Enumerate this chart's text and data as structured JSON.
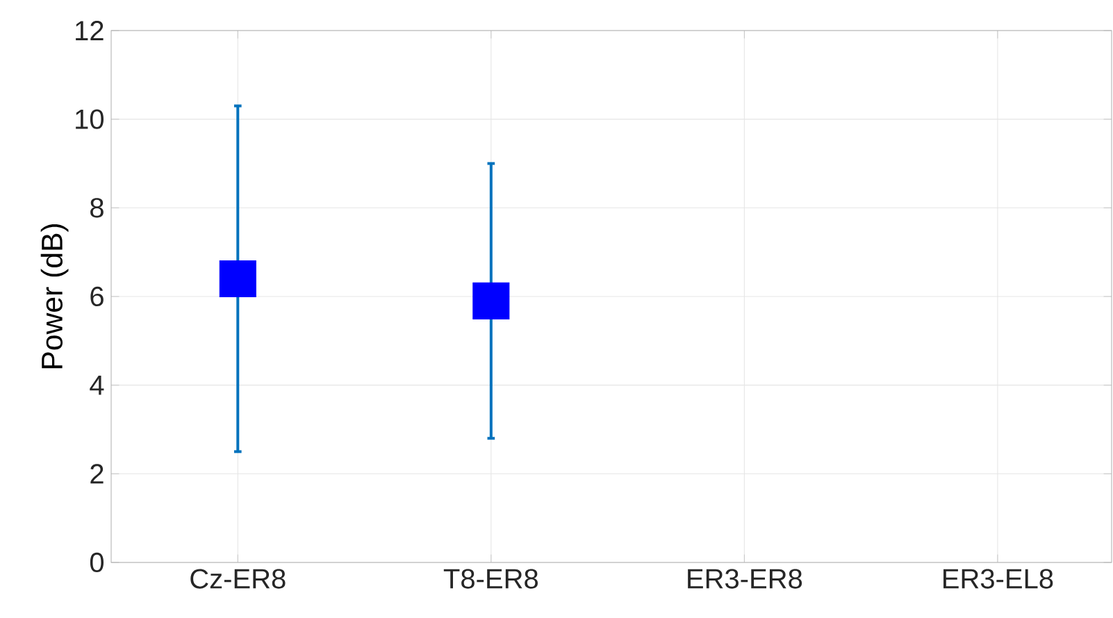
{
  "chart_data": {
    "type": "scatter",
    "ylabel": "Power (dB)",
    "categories": [
      "Cz-ER8",
      "T8-ER8",
      "ER3-ER8",
      "ER3-EL8"
    ],
    "series": [
      {
        "color": "#0000ff",
        "values": [
          6.4,
          5.9,
          null,
          null
        ],
        "errors": [
          [
            2.5,
            10.3
          ],
          [
            2.8,
            9.0
          ],
          null,
          null
        ]
      }
    ],
    "ylim": [
      0,
      12
    ],
    "yticks": [
      0,
      2,
      4,
      6,
      8,
      10,
      12
    ],
    "grid": true,
    "marker": "square"
  }
}
